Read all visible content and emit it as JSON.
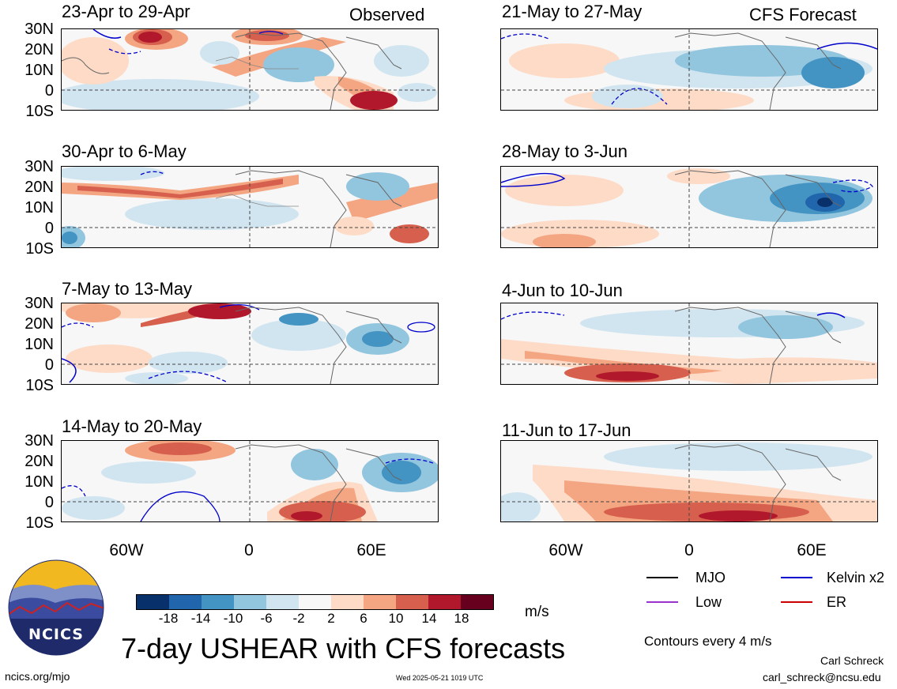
{
  "latitude_labels": [
    "30N",
    "20N",
    "10N",
    "0",
    "10S"
  ],
  "longitude_labels": [
    "60W",
    "0",
    "60E"
  ],
  "observed_tag": "Observed",
  "forecast_tag": "CFS Forecast",
  "panels": [
    {
      "title": "23-Apr to 29-Apr",
      "column": "observed"
    },
    {
      "title": "30-Apr to 6-May",
      "column": "observed"
    },
    {
      "title": "7-May to 13-May",
      "column": "observed"
    },
    {
      "title": "14-May to 20-May",
      "column": "observed"
    },
    {
      "title": "21-May to 27-May",
      "column": "forecast"
    },
    {
      "title": "28-May to 3-Jun",
      "column": "forecast"
    },
    {
      "title": "4-Jun to 10-Jun",
      "column": "forecast"
    },
    {
      "title": "11-Jun to 17-Jun",
      "column": "forecast"
    }
  ],
  "colorbar": {
    "labels": [
      "-18",
      "-14",
      "-10",
      "-6",
      "-2",
      "2",
      "6",
      "10",
      "14",
      "18"
    ],
    "unit": "m/s",
    "colors": [
      "#08306b",
      "#2166ac",
      "#4393c3",
      "#92c5de",
      "#d1e5f0",
      "#f7f7f7",
      "#fddbc7",
      "#f4a582",
      "#d6604d",
      "#b2182b",
      "#67001f"
    ]
  },
  "legend": {
    "items": [
      {
        "label": "MJO",
        "color": "#000000"
      },
      {
        "label": "Kelvin x2",
        "color": "#0000cc"
      },
      {
        "label": "Low",
        "color": "#9933cc"
      },
      {
        "label": "ER",
        "color": "#cc0000"
      }
    ],
    "contours_note": "Contours every 4 m/s"
  },
  "logo_text": "NCICS",
  "main_title": "7-day USHEAR with CFS forecasts",
  "url": "ncics.org/mjo",
  "timestamp": "Wed 2025-05-21 1019 UTC",
  "author": "Carl Schreck",
  "email": "carl_schreck@ncsu.edu"
}
